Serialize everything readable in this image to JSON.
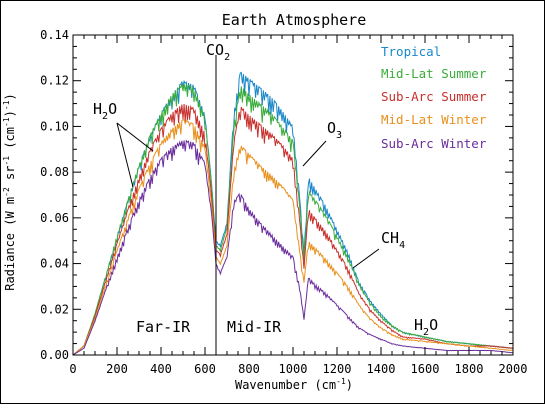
{
  "chart_data": {
    "type": "line",
    "title": "Earth Atmosphere",
    "xlabel_parts": [
      "Wavenumber (cm",
      "-1",
      ")"
    ],
    "ylabel_parts": [
      "Radiance (W m",
      "-2",
      " sr",
      "-1",
      " (cm",
      "-1",
      ")",
      "-1",
      ")"
    ],
    "xlim": [
      0,
      2000
    ],
    "ylim": [
      0,
      0.14
    ],
    "x_ticks": [
      0,
      200,
      400,
      600,
      800,
      1000,
      1200,
      1400,
      1600,
      1800,
      2000
    ],
    "y_ticks": [
      "0.00",
      "0.02",
      "0.04",
      "0.06",
      "0.08",
      "0.10",
      "0.12",
      "0.14"
    ],
    "divider_x": 650,
    "legend_position": "top-right",
    "region_labels": [
      "Far-IR",
      "Mid-IR"
    ],
    "annotations": [
      {
        "main": "H",
        "sub": "2",
        "rest": "O",
        "id": "h2o-left"
      },
      {
        "main": "CO",
        "sub": "2",
        "rest": "",
        "id": "co2"
      },
      {
        "main": "O",
        "sub": "3",
        "rest": "",
        "id": "o3"
      },
      {
        "main": "CH",
        "sub": "4",
        "rest": "",
        "id": "ch4"
      },
      {
        "main": "H",
        "sub": "2",
        "rest": "O",
        "id": "h2o-right"
      }
    ],
    "x": [
      0,
      50,
      100,
      150,
      200,
      250,
      300,
      350,
      400,
      450,
      500,
      550,
      600,
      630,
      650,
      670,
      700,
      730,
      760,
      800,
      850,
      900,
      950,
      1000,
      1030,
      1050,
      1070,
      1100,
      1150,
      1200,
      1250,
      1300,
      1350,
      1400,
      1450,
      1500,
      1600,
      1700,
      1800,
      1900,
      2000
    ],
    "series": [
      {
        "name": "Tropical",
        "color": "#1a87c9",
        "values": [
          0,
          0.004,
          0.018,
          0.035,
          0.052,
          0.068,
          0.083,
          0.096,
          0.106,
          0.114,
          0.12,
          0.118,
          0.105,
          0.075,
          0.05,
          0.048,
          0.058,
          0.105,
          0.124,
          0.121,
          0.117,
          0.113,
          0.107,
          0.1,
          0.07,
          0.045,
          0.078,
          0.073,
          0.065,
          0.055,
          0.045,
          0.032,
          0.024,
          0.018,
          0.013,
          0.01,
          0.008,
          0.006,
          0.005,
          0.004,
          0.003
        ]
      },
      {
        "name": "Mid-Lat Summer",
        "color": "#3aac3a",
        "values": [
          0,
          0.004,
          0.018,
          0.035,
          0.052,
          0.068,
          0.083,
          0.096,
          0.106,
          0.114,
          0.119,
          0.117,
          0.104,
          0.074,
          0.048,
          0.046,
          0.056,
          0.1,
          0.118,
          0.114,
          0.11,
          0.106,
          0.1,
          0.094,
          0.066,
          0.042,
          0.072,
          0.068,
          0.061,
          0.052,
          0.043,
          0.031,
          0.023,
          0.017,
          0.013,
          0.01,
          0.008,
          0.006,
          0.005,
          0.004,
          0.003
        ]
      },
      {
        "name": "Sub-Arc Summer",
        "color": "#c8302c",
        "values": [
          0,
          0.004,
          0.017,
          0.033,
          0.049,
          0.064,
          0.078,
          0.09,
          0.099,
          0.106,
          0.11,
          0.108,
          0.097,
          0.07,
          0.046,
          0.044,
          0.053,
          0.093,
          0.109,
          0.105,
          0.101,
          0.097,
          0.092,
          0.086,
          0.06,
          0.038,
          0.064,
          0.06,
          0.054,
          0.046,
          0.038,
          0.027,
          0.02,
          0.015,
          0.011,
          0.008,
          0.007,
          0.005,
          0.004,
          0.004,
          0.003
        ]
      },
      {
        "name": "Mid-Lat Winter",
        "color": "#e8901c",
        "values": [
          0,
          0.004,
          0.016,
          0.031,
          0.046,
          0.06,
          0.073,
          0.084,
          0.093,
          0.099,
          0.103,
          0.101,
          0.091,
          0.066,
          0.043,
          0.04,
          0.048,
          0.08,
          0.092,
          0.088,
          0.083,
          0.079,
          0.074,
          0.068,
          0.046,
          0.032,
          0.05,
          0.047,
          0.042,
          0.036,
          0.03,
          0.022,
          0.016,
          0.012,
          0.009,
          0.007,
          0.006,
          0.005,
          0.004,
          0.003,
          0.002
        ]
      },
      {
        "name": "Sub-Arc Winter",
        "color": "#6a2d9c",
        "values": [
          0,
          0.003,
          0.015,
          0.029,
          0.043,
          0.056,
          0.068,
          0.078,
          0.086,
          0.091,
          0.094,
          0.093,
          0.084,
          0.062,
          0.04,
          0.036,
          0.043,
          0.067,
          0.071,
          0.064,
          0.058,
          0.053,
          0.048,
          0.043,
          0.03,
          0.016,
          0.034,
          0.031,
          0.027,
          0.022,
          0.017,
          0.012,
          0.009,
          0.007,
          0.005,
          0.004,
          0.003,
          0.002,
          0.002,
          0.002,
          0.001
        ]
      }
    ]
  }
}
